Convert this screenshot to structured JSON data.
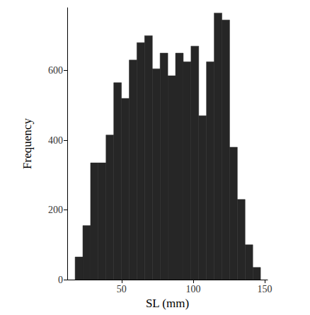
{
  "chart_data": {
    "type": "histogram",
    "x_label": "SL (mm)",
    "y_label": "Frequency",
    "bins": [
      17.5,
      22.9,
      28.3,
      33.7,
      39.1,
      44.5,
      49.9,
      55.3,
      60.7,
      66.1,
      71.5,
      76.9,
      82.3,
      87.7,
      93.1,
      98.5,
      103.9,
      109.3,
      114.7,
      120.1,
      125.5,
      130.9,
      136.3,
      141.7,
      147.1
    ],
    "values": [
      65,
      155,
      335,
      335,
      415,
      565,
      520,
      630,
      680,
      700,
      605,
      650,
      585,
      650,
      625,
      670,
      470,
      625,
      765,
      745,
      380,
      230,
      100,
      35
    ],
    "color": "#262626",
    "xlim": [
      12,
      152
    ],
    "xticks": [
      50,
      100,
      150
    ],
    "ylim": [
      0,
      780
    ],
    "yticks": [
      0,
      200,
      400,
      600
    ],
    "grid": false
  }
}
